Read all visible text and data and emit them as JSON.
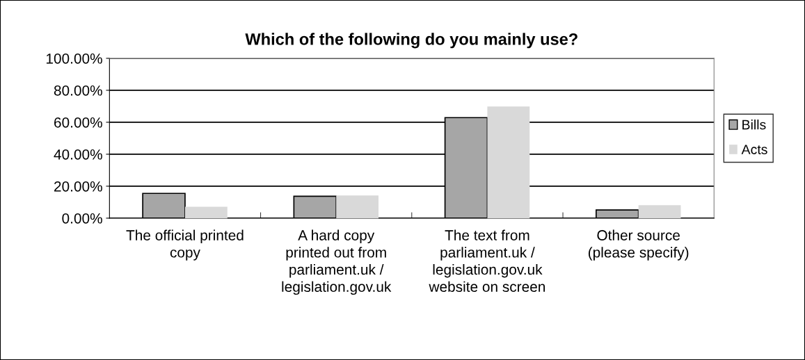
{
  "chart_data": {
    "type": "bar",
    "title": "Which of the following do you mainly use?",
    "categories": [
      "The official printed\ncopy",
      "A hard copy\nprinted out from\nparliament.uk /\nlegislation.gov.uk",
      "The text from\nparliament.uk /\nlegislation.gov.uk\nwebsite on screen",
      "Other source\n(please specify)"
    ],
    "series": [
      {
        "name": "Bills",
        "color": "#a6a6a6",
        "values": [
          15.5,
          13.7,
          62.9,
          5.1
        ]
      },
      {
        "name": "Acts",
        "color": "#d9d9d9",
        "values": [
          7.1,
          14.2,
          69.8,
          8.1
        ]
      }
    ],
    "ylim": [
      0,
      100
    ],
    "yticks": [
      {
        "value": 0,
        "label": "0.00%"
      },
      {
        "value": 20,
        "label": "20.00%"
      },
      {
        "value": 40,
        "label": "40.00%"
      },
      {
        "value": 60,
        "label": "60.00%"
      },
      {
        "value": 80,
        "label": "80.00%"
      },
      {
        "value": 100,
        "label": "100.00%"
      }
    ],
    "grid": "y",
    "legend": "right"
  }
}
